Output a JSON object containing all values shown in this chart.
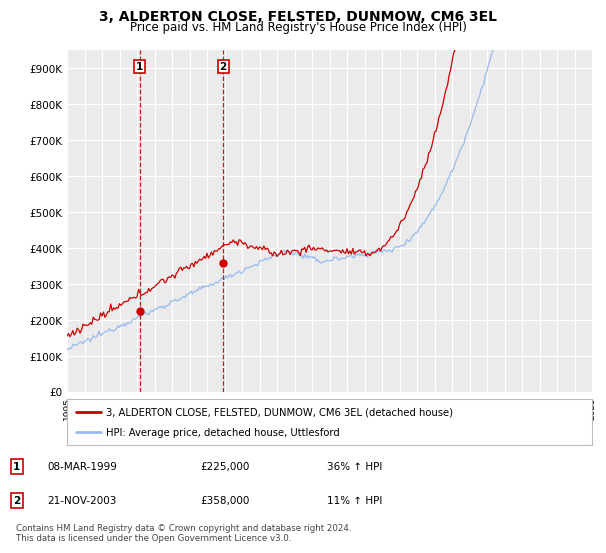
{
  "title": "3, ALDERTON CLOSE, FELSTED, DUNMOW, CM6 3EL",
  "subtitle": "Price paid vs. HM Land Registry's House Price Index (HPI)",
  "ylim": [
    0,
    950000
  ],
  "yticks": [
    0,
    100000,
    200000,
    300000,
    400000,
    500000,
    600000,
    700000,
    800000,
    900000
  ],
  "ytick_labels": [
    "£0",
    "£100K",
    "£200K",
    "£300K",
    "£400K",
    "£500K",
    "£600K",
    "£700K",
    "£800K",
    "£900K"
  ],
  "background_color": "#ffffff",
  "plot_bg_color": "#ebebeb",
  "grid_color": "#ffffff",
  "line1_color": "#cc0000",
  "line2_color": "#99bbee",
  "legend1_label": "3, ALDERTON CLOSE, FELSTED, DUNMOW, CM6 3EL (detached house)",
  "legend2_label": "HPI: Average price, detached house, Uttlesford",
  "table_rows": [
    {
      "num": "1",
      "date": "08-MAR-1999",
      "price": "£225,000",
      "info": "36% ↑ HPI"
    },
    {
      "num": "2",
      "date": "21-NOV-2003",
      "price": "£358,000",
      "info": "11% ↑ HPI"
    }
  ],
  "footnote": "Contains HM Land Registry data © Crown copyright and database right 2024.\nThis data is licensed under the Open Government Licence v3.0.",
  "title_fontsize": 10,
  "subtitle_fontsize": 8.5,
  "tick_fontsize": 7.5,
  "x_start_year": 1995,
  "x_end_year": 2025,
  "sale1_year": 1999.18,
  "sale1_value": 225000,
  "sale2_year": 2003.89,
  "sale2_value": 358000
}
